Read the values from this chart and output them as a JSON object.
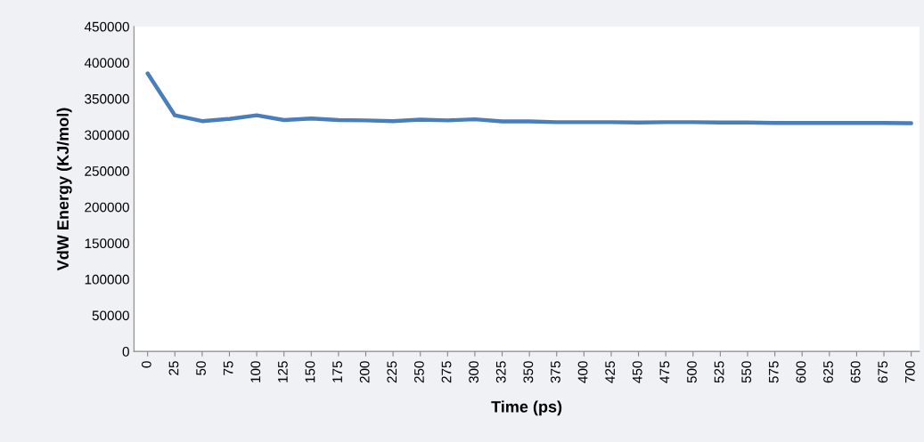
{
  "chart_data": {
    "type": "line",
    "xlabel": "Time (ps)",
    "ylabel": "VdW Energy (KJ/mol)",
    "categories": [
      "0",
      "25",
      "50",
      "75",
      "100",
      "125",
      "150",
      "175",
      "200",
      "225",
      "250",
      "275",
      "300",
      "325",
      "350",
      "375",
      "400",
      "425",
      "450",
      "475",
      "500",
      "525",
      "550",
      "575",
      "600",
      "625",
      "650",
      "675",
      "700"
    ],
    "series": [
      {
        "color": "#4a7ebb",
        "values": [
          385000,
          327000,
          319000,
          322000,
          327000,
          320500,
          322500,
          320500,
          320000,
          319000,
          321000,
          320000,
          321500,
          318500,
          318500,
          317500,
          317500,
          317500,
          317000,
          317500,
          317500,
          317000,
          317000,
          316500,
          316500,
          316500,
          316500,
          316500,
          316000
        ]
      }
    ],
    "ylim": [
      0,
      450000
    ],
    "yticks": [
      0,
      50000,
      100000,
      150000,
      200000,
      250000,
      300000,
      350000,
      400000,
      450000
    ],
    "grid": false,
    "legend": false,
    "marker": "none",
    "line_style": "solid"
  }
}
